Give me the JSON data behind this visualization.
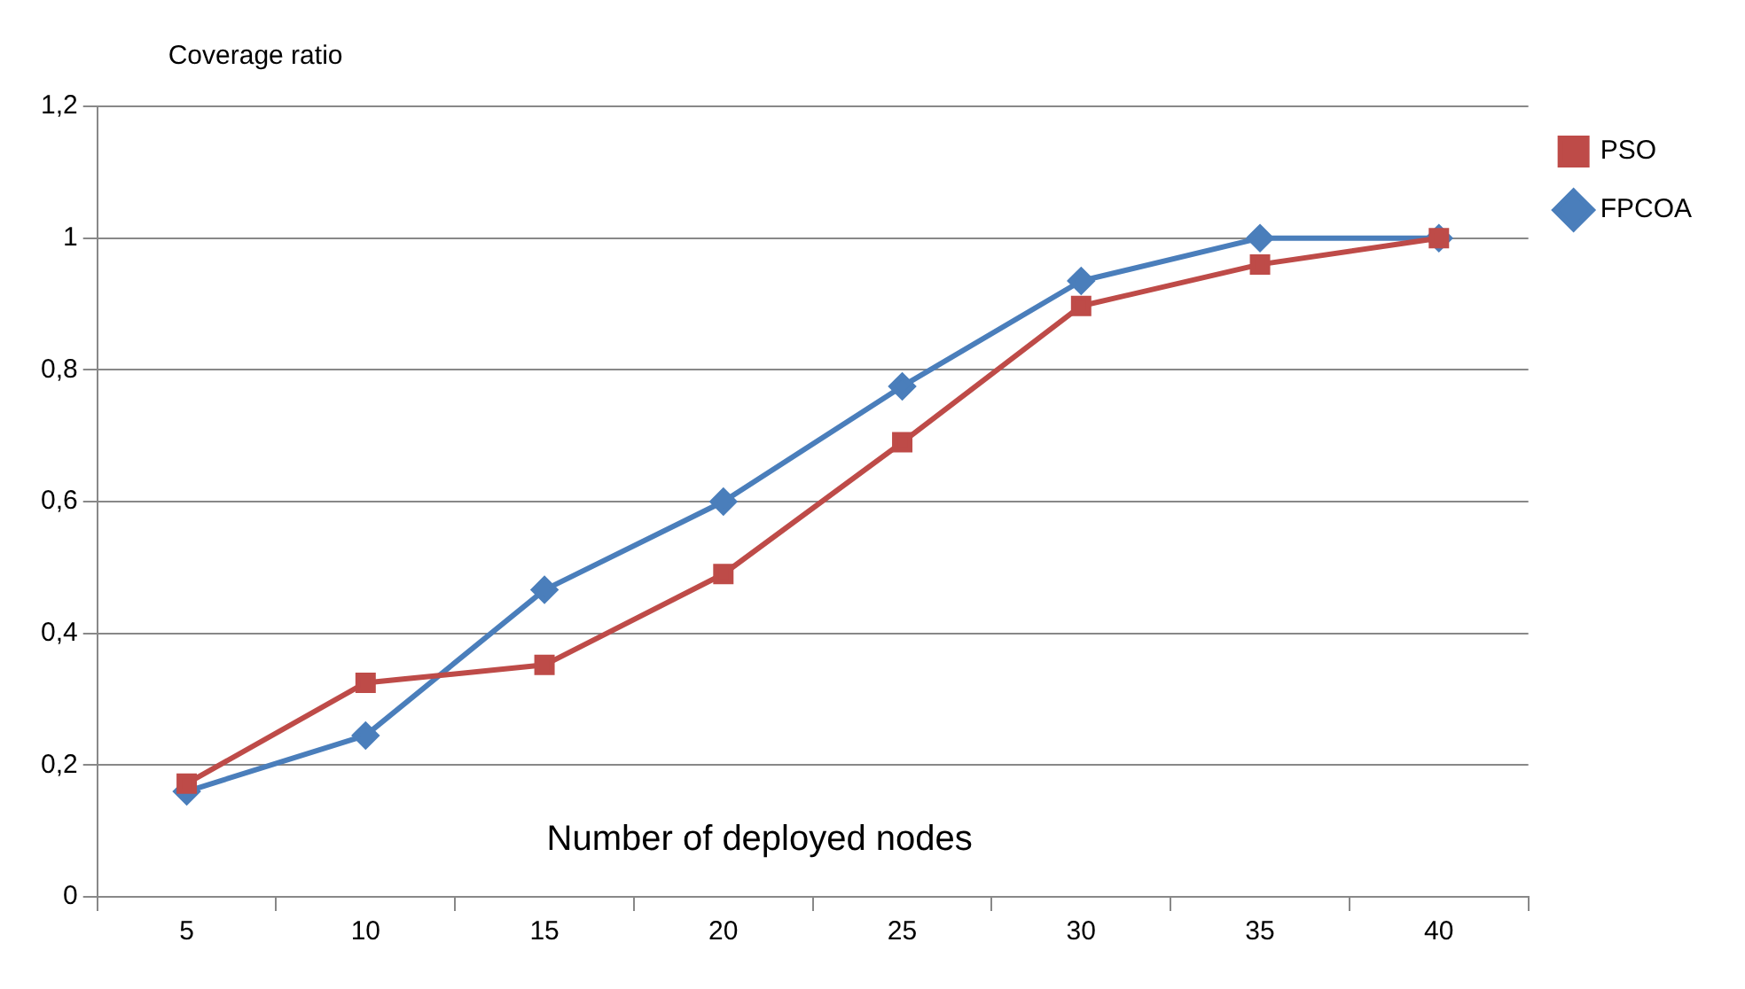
{
  "chart_data": {
    "type": "line",
    "ylabel": "Coverage ratio",
    "xlabel": "Number of deployed nodes",
    "categories": [
      "5",
      "10",
      "15",
      "20",
      "25",
      "30",
      "35",
      "40"
    ],
    "series": [
      {
        "name": "FPCOA",
        "color": "#4a7ebb",
        "marker": "diamond",
        "values": [
          0.16,
          0.245,
          0.466,
          0.6,
          0.775,
          0.935,
          1.0,
          1.0
        ]
      },
      {
        "name": "PSO",
        "color": "#be4b48",
        "marker": "square",
        "values": [
          0.172,
          0.325,
          0.352,
          0.49,
          0.69,
          0.897,
          0.96,
          1.0
        ]
      }
    ],
    "ylim": [
      0,
      1.2
    ],
    "yticks": [
      0,
      {
        "value": 0.2,
        "label": "0,2"
      },
      {
        "value": 0.4,
        "label": "0,4"
      },
      {
        "value": 0.6,
        "label": "0,6"
      },
      {
        "value": 0.8,
        "label": "0,8"
      },
      1,
      {
        "value": 1.2,
        "label": "1,2"
      }
    ],
    "grid": "y",
    "legend": "top right"
  }
}
